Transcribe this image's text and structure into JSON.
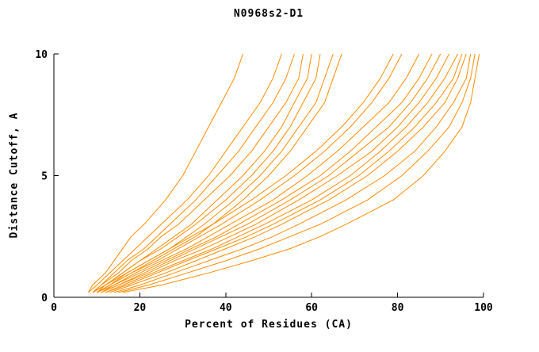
{
  "chart_data": {
    "type": "line",
    "title": "N0968s2-D1",
    "xlabel": "Percent of Residues (CA)",
    "ylabel": "Distance Cutoff, A",
    "xlim": [
      0,
      100
    ],
    "ylim": [
      0,
      10
    ],
    "x_ticks": [
      0,
      20,
      40,
      60,
      80,
      100
    ],
    "y_ticks": [
      0,
      5,
      10
    ],
    "grid": false,
    "legend": "none",
    "series_color": "#ff8c00",
    "axis_color": "#000000",
    "series_y_grid": [
      0.2,
      0.5,
      1,
      1.5,
      2,
      2.5,
      3,
      4,
      5,
      6,
      7,
      8,
      9,
      10
    ],
    "series_x": [
      [
        8,
        9,
        12,
        14,
        16,
        18,
        21,
        26,
        30,
        33,
        36,
        39,
        42,
        44
      ],
      [
        8,
        10,
        13,
        16,
        19,
        22,
        25,
        31,
        36,
        40,
        44,
        48,
        51,
        53
      ],
      [
        9,
        11,
        14,
        17,
        21,
        24,
        27,
        33,
        38,
        43,
        47,
        51,
        54,
        56
      ],
      [
        9,
        11,
        15,
        18,
        22,
        25,
        29,
        35,
        41,
        46,
        50,
        54,
        57,
        58
      ],
      [
        10,
        12,
        16,
        20,
        24,
        28,
        32,
        38,
        44,
        49,
        53,
        56,
        59,
        60
      ],
      [
        9,
        12,
        16,
        20,
        25,
        29,
        33,
        40,
        46,
        51,
        55,
        58,
        61,
        62
      ],
      [
        10,
        13,
        17,
        22,
        27,
        31,
        35,
        42,
        48,
        53,
        57,
        61,
        63,
        65
      ],
      [
        10,
        13,
        18,
        23,
        28,
        33,
        37,
        44,
        50,
        55,
        59,
        63,
        65,
        67
      ],
      [
        9,
        12,
        17,
        22,
        27,
        32,
        37,
        46,
        54,
        61,
        67,
        72,
        76,
        79
      ],
      [
        10,
        13,
        18,
        24,
        29,
        34,
        39,
        48,
        56,
        63,
        69,
        74,
        78,
        81
      ],
      [
        10,
        14,
        19,
        25,
        31,
        36,
        41,
        51,
        59,
        66,
        72,
        78,
        82,
        85
      ],
      [
        11,
        14,
        20,
        26,
        32,
        38,
        43,
        53,
        62,
        69,
        75,
        81,
        85,
        88
      ],
      [
        11,
        15,
        21,
        27,
        33,
        39,
        45,
        55,
        64,
        71,
        78,
        83,
        87,
        90
      ],
      [
        11,
        15,
        22,
        28,
        35,
        41,
        47,
        57,
        66,
        74,
        80,
        85,
        89,
        92
      ],
      [
        12,
        16,
        23,
        30,
        37,
        43,
        49,
        60,
        69,
        76,
        82,
        87,
        91,
        94
      ],
      [
        12,
        17,
        24,
        31,
        38,
        45,
        51,
        62,
        71,
        78,
        84,
        89,
        93,
        95
      ],
      [
        13,
        18,
        26,
        33,
        40,
        47,
        53,
        64,
        73,
        80,
        86,
        91,
        94,
        96
      ],
      [
        14,
        20,
        28,
        36,
        44,
        51,
        57,
        68,
        77,
        84,
        89,
        93,
        96,
        97
      ],
      [
        15,
        22,
        31,
        40,
        48,
        55,
        62,
        73,
        81,
        87,
        92,
        95,
        97,
        98
      ],
      [
        16,
        25,
        36,
        46,
        55,
        62,
        68,
        79,
        86,
        91,
        95,
        97,
        98,
        99
      ]
    ]
  }
}
